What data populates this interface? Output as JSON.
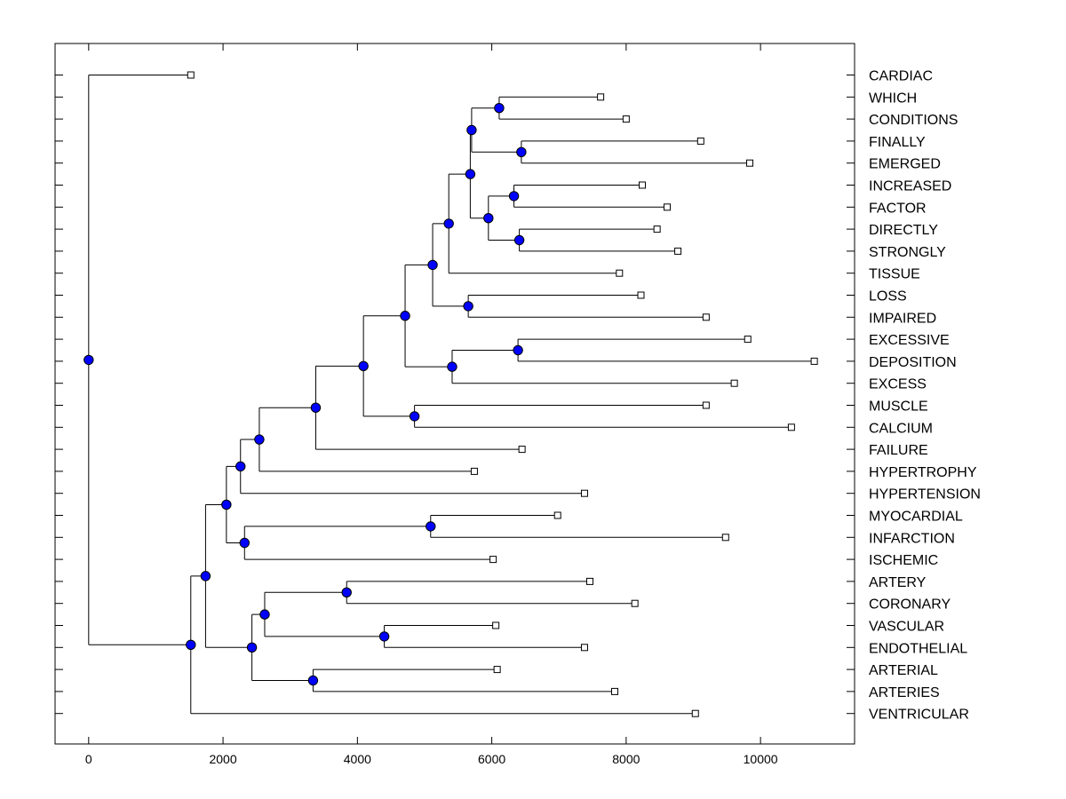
{
  "chart_data": {
    "type": "dendrogram",
    "title": "",
    "xlabel": "",
    "ylabel": "",
    "xlim": [
      -500,
      11400
    ],
    "xticks": [
      0,
      2000,
      4000,
      6000,
      8000,
      10000
    ],
    "xtick_labels": [
      "0",
      "2000",
      "4000",
      "6000",
      "8000",
      "10000"
    ],
    "grid": false,
    "colors": {
      "node": "#0000ff",
      "line": "#000000",
      "leaf_marker": "#ffffff"
    },
    "leaves": [
      {
        "label": "CARDIAC",
        "x": 1520
      },
      {
        "label": "WHICH",
        "x": 7620
      },
      {
        "label": "CONDITIONS",
        "x": 8000
      },
      {
        "label": "FINALLY",
        "x": 9110
      },
      {
        "label": "EMERGED",
        "x": 9840
      },
      {
        "label": "INCREASED",
        "x": 8240
      },
      {
        "label": "FACTOR",
        "x": 8610
      },
      {
        "label": "DIRECTLY",
        "x": 8460
      },
      {
        "label": "STRONGLY",
        "x": 8770
      },
      {
        "label": "TISSUE",
        "x": 7900
      },
      {
        "label": "LOSS",
        "x": 8220
      },
      {
        "label": "IMPAIRED",
        "x": 9190
      },
      {
        "label": "EXCESSIVE",
        "x": 9810
      },
      {
        "label": "DEPOSITION",
        "x": 10800
      },
      {
        "label": "EXCESS",
        "x": 9610
      },
      {
        "label": "MUSCLE",
        "x": 9190
      },
      {
        "label": "CALCIUM",
        "x": 10460
      },
      {
        "label": "FAILURE",
        "x": 6450
      },
      {
        "label": "HYPERTROPHY",
        "x": 5740
      },
      {
        "label": "HYPERTENSION",
        "x": 7380
      },
      {
        "label": "MYOCARDIAL",
        "x": 6980
      },
      {
        "label": "INFARCTION",
        "x": 9480
      },
      {
        "label": "ISCHEMIC",
        "x": 6020
      },
      {
        "label": "ARTERY",
        "x": 7460
      },
      {
        "label": "CORONARY",
        "x": 8130
      },
      {
        "label": "VASCULAR",
        "x": 6060
      },
      {
        "label": "ENDOTHELIAL",
        "x": 7380
      },
      {
        "label": "ARTERIAL",
        "x": 6080
      },
      {
        "label": "ARTERIES",
        "x": 7830
      },
      {
        "label": "VENTRICULAR",
        "x": 9030
      }
    ],
    "merges": [
      {
        "id": "n1",
        "x": 6110,
        "children": [
          "L1",
          "L2"
        ]
      },
      {
        "id": "n2",
        "x": 6440,
        "children": [
          "L3",
          "L4"
        ]
      },
      {
        "id": "n3",
        "x": 5700,
        "children": [
          "n1",
          "n2"
        ]
      },
      {
        "id": "n4",
        "x": 6330,
        "children": [
          "L5",
          "L6"
        ]
      },
      {
        "id": "n5",
        "x": 6410,
        "children": [
          "L7",
          "L8"
        ]
      },
      {
        "id": "n6",
        "x": 5950,
        "children": [
          "n4",
          "n5"
        ]
      },
      {
        "id": "n7",
        "x": 5680,
        "children": [
          "n3",
          "n6"
        ]
      },
      {
        "id": "n8",
        "x": 5360,
        "children": [
          "n7",
          "L9"
        ]
      },
      {
        "id": "n9",
        "x": 5650,
        "children": [
          "L10",
          "L11"
        ]
      },
      {
        "id": "n10",
        "x": 5120,
        "children": [
          "n8",
          "n9"
        ]
      },
      {
        "id": "n11",
        "x": 6390,
        "children": [
          "L12",
          "L13"
        ]
      },
      {
        "id": "n12",
        "x": 5410,
        "children": [
          "n11",
          "L14"
        ]
      },
      {
        "id": "n13",
        "x": 4710,
        "children": [
          "n10",
          "n12"
        ]
      },
      {
        "id": "n14",
        "x": 4850,
        "children": [
          "L15",
          "L16"
        ]
      },
      {
        "id": "n15",
        "x": 4090,
        "children": [
          "n13",
          "n14"
        ]
      },
      {
        "id": "n16",
        "x": 3380,
        "children": [
          "n15",
          "L17"
        ]
      },
      {
        "id": "n17",
        "x": 2540,
        "children": [
          "n16",
          "L18"
        ]
      },
      {
        "id": "n18",
        "x": 2260,
        "children": [
          "n17",
          "L19"
        ]
      },
      {
        "id": "n19",
        "x": 5090,
        "children": [
          "L20",
          "L21"
        ]
      },
      {
        "id": "n20",
        "x": 2320,
        "children": [
          "n19",
          "L22"
        ]
      },
      {
        "id": "n21",
        "x": 2050,
        "children": [
          "n18",
          "n20"
        ]
      },
      {
        "id": "n22",
        "x": 3840,
        "children": [
          "L23",
          "L24"
        ]
      },
      {
        "id": "n23",
        "x": 4400,
        "children": [
          "L25",
          "L26"
        ]
      },
      {
        "id": "n24",
        "x": 2620,
        "children": [
          "n22",
          "n23"
        ]
      },
      {
        "id": "n25",
        "x": 3340,
        "children": [
          "L27",
          "L28"
        ]
      },
      {
        "id": "n26",
        "x": 2430,
        "children": [
          "n24",
          "n25"
        ]
      },
      {
        "id": "n27",
        "x": 1740,
        "children": [
          "n21",
          "n26"
        ]
      },
      {
        "id": "n28",
        "x": 1520,
        "children": [
          "n27",
          "L29"
        ]
      },
      {
        "id": "n29",
        "x": 0,
        "children": [
          "L0",
          "n28"
        ]
      }
    ]
  }
}
